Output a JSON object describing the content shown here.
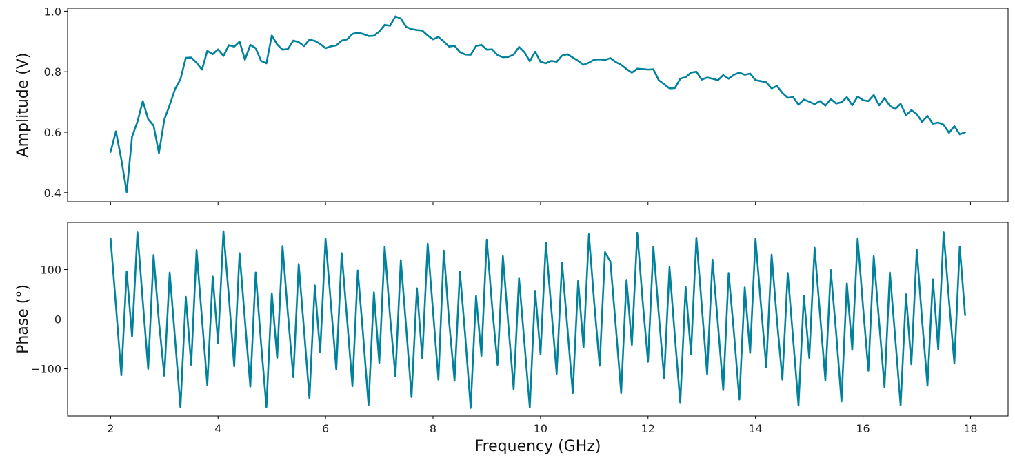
{
  "chart_data": [
    {
      "type": "line",
      "xlabel": "",
      "ylabel": "Amplitude (V)",
      "xlim": [
        1.2,
        18.7
      ],
      "ylim": [
        0.37,
        1.01
      ],
      "xticks": [
        2,
        4,
        6,
        8,
        10,
        12,
        14,
        16,
        18
      ],
      "xticklabels": [],
      "yticks": [
        0.4,
        0.6,
        0.8,
        1.0
      ],
      "yticklabels": [
        "0.4",
        "0.6",
        "0.8",
        "1.0"
      ],
      "grid": false,
      "x": [
        2.0,
        2.1,
        2.2,
        2.3,
        2.4,
        2.5,
        2.6,
        2.7,
        2.8,
        2.9,
        3.0,
        3.1,
        3.2,
        3.3,
        3.4,
        3.5,
        3.6,
        3.7,
        3.8,
        3.9,
        4.0,
        4.1,
        4.2,
        4.3,
        4.4,
        4.5,
        4.6,
        4.7,
        4.8,
        4.9,
        5.0,
        5.1,
        5.2,
        5.3,
        5.4,
        5.5,
        5.6,
        5.7,
        5.8,
        5.9,
        6.0,
        6.1,
        6.2,
        6.3,
        6.4,
        6.5,
        6.6,
        6.7,
        6.8,
        6.9,
        7.0,
        7.1,
        7.2,
        7.3,
        7.4,
        7.5,
        7.6,
        7.7,
        7.8,
        7.9,
        8.0,
        8.1,
        8.2,
        8.3,
        8.4,
        8.5,
        8.6,
        8.7,
        8.8,
        8.9,
        9.0,
        9.1,
        9.2,
        9.3,
        9.4,
        9.5,
        9.6,
        9.7,
        9.8,
        9.9,
        10.0,
        10.1,
        10.2,
        10.3,
        10.4,
        10.5,
        10.6,
        10.7,
        10.8,
        10.9,
        11.0,
        11.1,
        11.2,
        11.3,
        11.4,
        11.5,
        11.6,
        11.7,
        11.8,
        11.9,
        12.0,
        12.1,
        12.2,
        12.3,
        12.4,
        12.5,
        12.6,
        12.7,
        12.8,
        12.9,
        13.0,
        13.1,
        13.2,
        13.3,
        13.4,
        13.5,
        13.6,
        13.7,
        13.8,
        13.9,
        14.0,
        14.1,
        14.2,
        14.3,
        14.4,
        14.5,
        14.6,
        14.7,
        14.8,
        14.9,
        15.0,
        15.1,
        15.2,
        15.3,
        15.4,
        15.5,
        15.6,
        15.7,
        15.8,
        15.9,
        16.0,
        16.1,
        16.2,
        16.3,
        16.4,
        16.5,
        16.6,
        16.7,
        16.8,
        16.9,
        17.0,
        17.1,
        17.2,
        17.3,
        17.4,
        17.5,
        17.6,
        17.7,
        17.8,
        17.9
      ],
      "series": [
        {
          "color": "#00819c",
          "values": [
            0.535,
            0.603,
            0.51,
            0.402,
            0.585,
            0.635,
            0.703,
            0.643,
            0.622,
            0.531,
            0.642,
            0.69,
            0.743,
            0.775,
            0.846,
            0.847,
            0.83,
            0.807,
            0.869,
            0.858,
            0.874,
            0.852,
            0.888,
            0.883,
            0.9,
            0.84,
            0.889,
            0.878,
            0.836,
            0.828,
            0.92,
            0.89,
            0.873,
            0.875,
            0.903,
            0.898,
            0.885,
            0.906,
            0.902,
            0.892,
            0.878,
            0.884,
            0.887,
            0.903,
            0.907,
            0.925,
            0.929,
            0.925,
            0.918,
            0.919,
            0.933,
            0.955,
            0.952,
            0.983,
            0.976,
            0.948,
            0.941,
            0.938,
            0.936,
            0.92,
            0.907,
            0.915,
            0.9,
            0.883,
            0.886,
            0.865,
            0.857,
            0.856,
            0.885,
            0.889,
            0.873,
            0.874,
            0.855,
            0.848,
            0.849,
            0.857,
            0.882,
            0.865,
            0.835,
            0.866,
            0.833,
            0.828,
            0.836,
            0.833,
            0.853,
            0.858,
            0.847,
            0.836,
            0.823,
            0.83,
            0.84,
            0.841,
            0.839,
            0.845,
            0.832,
            0.823,
            0.809,
            0.797,
            0.81,
            0.809,
            0.807,
            0.808,
            0.772,
            0.759,
            0.745,
            0.746,
            0.777,
            0.782,
            0.797,
            0.8,
            0.774,
            0.781,
            0.777,
            0.772,
            0.789,
            0.777,
            0.79,
            0.797,
            0.79,
            0.794,
            0.772,
            0.769,
            0.765,
            0.745,
            0.753,
            0.73,
            0.714,
            0.716,
            0.691,
            0.708,
            0.701,
            0.693,
            0.703,
            0.688,
            0.71,
            0.695,
            0.699,
            0.716,
            0.689,
            0.718,
            0.706,
            0.703,
            0.723,
            0.689,
            0.713,
            0.687,
            0.677,
            0.694,
            0.656,
            0.673,
            0.66,
            0.634,
            0.654,
            0.628,
            0.632,
            0.625,
            0.598,
            0.62,
            0.593,
            0.6
          ]
        }
      ]
    },
    {
      "type": "line",
      "xlabel": "Frequency (GHz)",
      "ylabel": "Phase (°)",
      "xlim": [
        1.2,
        18.7
      ],
      "ylim": [
        -195,
        195
      ],
      "xticks": [
        2,
        4,
        6,
        8,
        10,
        12,
        14,
        16,
        18
      ],
      "xticklabels": [
        "2",
        "4",
        "6",
        "8",
        "10",
        "12",
        "14",
        "16",
        "18"
      ],
      "yticks": [
        -100,
        0,
        100
      ],
      "yticklabels": [
        "−100",
        "0",
        "100"
      ],
      "grid": false,
      "x": [
        2.0,
        2.1,
        2.2,
        2.3,
        2.4,
        2.5,
        2.6,
        2.7,
        2.8,
        2.9,
        3.0,
        3.1,
        3.2,
        3.3,
        3.4,
        3.5,
        3.6,
        3.7,
        3.8,
        3.9,
        4.0,
        4.1,
        4.2,
        4.3,
        4.4,
        4.5,
        4.6,
        4.7,
        4.8,
        4.9,
        5.0,
        5.1,
        5.2,
        5.3,
        5.4,
        5.5,
        5.6,
        5.7,
        5.8,
        5.9,
        6.0,
        6.1,
        6.2,
        6.3,
        6.4,
        6.5,
        6.6,
        6.7,
        6.8,
        6.9,
        7.0,
        7.1,
        7.2,
        7.3,
        7.4,
        7.5,
        7.6,
        7.7,
        7.8,
        7.9,
        8.0,
        8.1,
        8.2,
        8.3,
        8.4,
        8.5,
        8.6,
        8.7,
        8.8,
        8.9,
        9.0,
        9.1,
        9.2,
        9.3,
        9.4,
        9.5,
        9.6,
        9.7,
        9.8,
        9.9,
        10.0,
        10.1,
        10.2,
        10.3,
        10.4,
        10.5,
        10.6,
        10.7,
        10.8,
        10.9,
        11.0,
        11.1,
        11.2,
        11.3,
        11.4,
        11.5,
        11.6,
        11.7,
        11.8,
        11.9,
        12.0,
        12.1,
        12.2,
        12.3,
        12.4,
        12.5,
        12.6,
        12.7,
        12.8,
        12.9,
        13.0,
        13.1,
        13.2,
        13.3,
        13.4,
        13.5,
        13.6,
        13.7,
        13.8,
        13.9,
        14.0,
        14.1,
        14.2,
        14.3,
        14.4,
        14.5,
        14.6,
        14.7,
        14.8,
        14.9,
        15.0,
        15.1,
        15.2,
        15.3,
        15.4,
        15.5,
        15.6,
        15.7,
        15.8,
        15.9,
        16.0,
        16.1,
        16.2,
        16.3,
        16.4,
        16.5,
        16.6,
        16.7,
        16.8,
        16.9,
        17.0,
        17.1,
        17.2,
        17.3,
        17.4,
        17.5,
        17.6,
        17.7,
        17.8,
        17.9
      ],
      "series": [
        {
          "color": "#00819c",
          "values": [
            163,
            27,
            -113,
            96,
            -35,
            175,
            35,
            -100,
            129,
            -5,
            -114,
            94,
            -40,
            -178,
            45,
            -92,
            139,
            2,
            -133,
            86,
            -48,
            177,
            47,
            -95,
            133,
            -2,
            -136,
            94,
            -49,
            -177,
            52,
            -78,
            147,
            10,
            -117,
            111,
            -22,
            -159,
            68,
            -67,
            162,
            30,
            -102,
            133,
            1,
            -135,
            98,
            -34,
            -173,
            54,
            -88,
            146,
            6,
            -115,
            119,
            -16,
            -157,
            62,
            -79,
            152,
            16,
            -122,
            138,
            -6,
            -124,
            96,
            -35,
            -179,
            47,
            -74,
            160,
            25,
            -92,
            127,
            -10,
            -141,
            82,
            -47,
            -178,
            57,
            -71,
            154,
            22,
            -110,
            114,
            -17,
            -149,
            77,
            -57,
            171,
            32,
            -94,
            135,
            116,
            -14,
            -149,
            79,
            -52,
            174,
            37,
            -86,
            146,
            10,
            -119,
            105,
            -35,
            -169,
            65,
            -70,
            164,
            27,
            -111,
            120,
            -9,
            -143,
            93,
            -29,
            -162,
            64,
            -68,
            162,
            30,
            -97,
            130,
            -3,
            -122,
            93,
            -40,
            -174,
            47,
            -78,
            144,
            10,
            -123,
            99,
            -27,
            -166,
            72,
            -62,
            163,
            26,
            -104,
            127,
            -6,
            -137,
            94,
            -38,
            -174,
            50,
            -91,
            140,
            -3,
            -134,
            80,
            -61,
            175,
            38,
            -89,
            146,
            8
          ]
        }
      ]
    }
  ]
}
